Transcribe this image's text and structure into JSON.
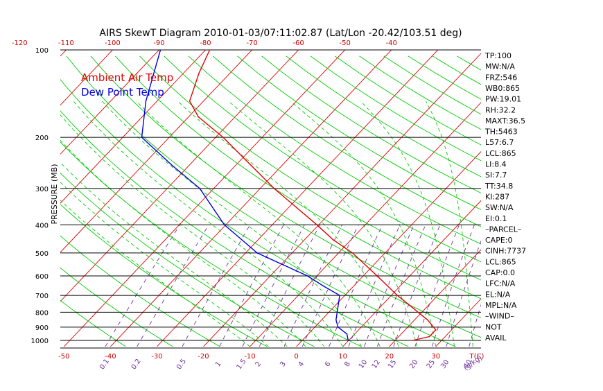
{
  "chart_data": {
    "type": "line",
    "title": "AIRS SkewT Diagram 2010-01-03/07:11:02.87 (Lat/Lon -20.42/103.51 deg)",
    "ylabel": "PRESSURE (MB)",
    "x_bottom_unit": "T(C)",
    "mixing_ratio_unit": "g/kg",
    "pressure_ticks": [
      100,
      200,
      300,
      400,
      500,
      600,
      700,
      800,
      900,
      1000
    ],
    "bottom_temp_ticks": [
      -50,
      -40,
      -30,
      -20,
      -10,
      0,
      10,
      20,
      30
    ],
    "top_temp_ticks": [
      -120,
      -110,
      -100,
      -90,
      -80,
      -70,
      -60,
      -50,
      -40
    ],
    "mixing_ratio_labels": [
      "0.1",
      "0.2",
      "0.5",
      "1",
      "1.5",
      "2",
      "3",
      "4",
      "6",
      "8",
      "10",
      "12",
      "15",
      "20",
      "25",
      "30",
      "40"
    ],
    "legend": [
      "Ambient Air Temp",
      "Dew Point Temp"
    ],
    "series": [
      {
        "name": "Ambient Air Temp",
        "color": "#e00000",
        "points": [
          [
            1000,
            23.8
          ],
          [
            970,
            26.6
          ],
          [
            920,
            26.6
          ],
          [
            850,
            22.8
          ],
          [
            700,
            11.3
          ],
          [
            600,
            3.0
          ],
          [
            500,
            -7.0
          ],
          [
            450,
            -13.9
          ],
          [
            400,
            -20.4
          ],
          [
            350,
            -28.1
          ],
          [
            300,
            -37.0
          ],
          [
            250,
            -46.6
          ],
          [
            200,
            -58.4
          ],
          [
            170,
            -67.9
          ],
          [
            150,
            -73.0
          ],
          [
            120,
            -76.7
          ],
          [
            100,
            -79.1
          ]
        ]
      },
      {
        "name": "Dew Point Temp",
        "color": "#0000e0",
        "points": [
          [
            1000,
            9.9
          ],
          [
            950,
            8.3
          ],
          [
            900,
            5.0
          ],
          [
            850,
            3.1
          ],
          [
            700,
            -1.1
          ],
          [
            650,
            -6.5
          ],
          [
            600,
            -12.0
          ],
          [
            500,
            -27.5
          ],
          [
            400,
            -40.3
          ],
          [
            300,
            -53.0
          ],
          [
            250,
            -63.6
          ],
          [
            200,
            -75.9
          ],
          [
            150,
            -82.4
          ],
          [
            100,
            -89.7
          ]
        ]
      }
    ],
    "indices": [
      "TP:100",
      "MW:N/A",
      "FRZ:546",
      "WB0:865",
      "PW:19.01",
      "RH:32.2",
      "MAXT:36.5",
      "TH:5463",
      "L57:6.7",
      "LCL:865",
      "LI:8.4",
      "SI:7.7",
      "TT:34.8",
      "KI:287",
      "SW:N/A",
      "EI:0.1",
      "–PARCEL–",
      "CAPE:0",
      "CINH:7737",
      "LCL:865",
      "CAP:0.0",
      "LFC:N/A",
      "EL:N/A",
      "MPL:N/A",
      "–WIND–",
      "NOT",
      "AVAIL"
    ],
    "colors": {
      "isotherm": "#e00000",
      "dry_adiabat": "#00cc00",
      "moist_adiabat": "#00cc00",
      "mixing_ratio": "#7030a0",
      "isobar": "#000000"
    }
  }
}
